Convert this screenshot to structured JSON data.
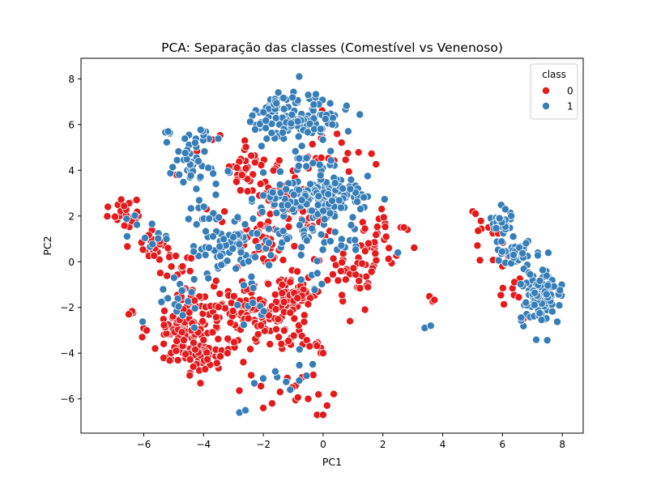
{
  "chart_data": {
    "type": "scatter",
    "title": "PCA: Separação das classes (Comestível vs Venenoso)",
    "xlabel": "PC1",
    "ylabel": "PC2",
    "xlim": [
      -8.1,
      8.7
    ],
    "ylim": [
      -7.5,
      8.9
    ],
    "xticks": [
      -6,
      -4,
      -2,
      0,
      2,
      4,
      6,
      8
    ],
    "yticks": [
      -6,
      -4,
      -2,
      0,
      2,
      4,
      6,
      8
    ],
    "grid": false,
    "legend": {
      "title": "class",
      "placement": "top-right"
    },
    "series": [
      {
        "name": "0",
        "color": "#e41a1c",
        "clusters": [
          {
            "cx": -6.6,
            "cy": 2.2,
            "sx": 0.35,
            "sy": 0.35,
            "n": 22
          },
          {
            "cx": -5.8,
            "cy": 0.8,
            "sx": 0.35,
            "sy": 0.4,
            "n": 20
          },
          {
            "cx": -5.0,
            "cy": 0.0,
            "sx": 0.3,
            "sy": 0.4,
            "n": 14
          },
          {
            "cx": -4.6,
            "cy": -3.2,
            "sx": 0.6,
            "sy": 0.8,
            "n": 90
          },
          {
            "cx": -4.0,
            "cy": -4.2,
            "sx": 0.4,
            "sy": 0.3,
            "n": 30
          },
          {
            "cx": -4.3,
            "cy": -1.6,
            "sx": 0.5,
            "sy": 0.4,
            "n": 25
          },
          {
            "cx": -3.5,
            "cy": -3.0,
            "sx": 0.6,
            "sy": 0.8,
            "n": 30
          },
          {
            "cx": -2.6,
            "cy": -2.0,
            "sx": 0.4,
            "sy": 0.6,
            "n": 40
          },
          {
            "cx": -1.9,
            "cy": -2.5,
            "sx": 0.5,
            "sy": 0.5,
            "n": 30
          },
          {
            "cx": -1.1,
            "cy": -1.5,
            "sx": 0.5,
            "sy": 0.6,
            "n": 80
          },
          {
            "cx": -0.7,
            "cy": -3.2,
            "sx": 0.5,
            "sy": 0.5,
            "n": 20
          },
          {
            "cx": -2.1,
            "cy": 0.8,
            "sx": 0.5,
            "sy": 0.6,
            "n": 35
          },
          {
            "cx": -2.6,
            "cy": 4.2,
            "sx": 0.6,
            "sy": 0.6,
            "n": 35
          },
          {
            "cx": -1.3,
            "cy": 3.2,
            "sx": 0.6,
            "sy": 0.8,
            "n": 30
          },
          {
            "cx": 0.3,
            "cy": 4.8,
            "sx": 0.5,
            "sy": 0.6,
            "n": 20
          },
          {
            "cx": -0.4,
            "cy": 1.5,
            "sx": 0.5,
            "sy": 0.5,
            "n": 20
          },
          {
            "cx": 0.8,
            "cy": -0.7,
            "sx": 0.6,
            "sy": 0.5,
            "n": 25
          },
          {
            "cx": 1.6,
            "cy": 0.2,
            "sx": 0.5,
            "sy": 0.4,
            "n": 25
          },
          {
            "cx": 1.9,
            "cy": 1.6,
            "sx": 0.5,
            "sy": 0.4,
            "n": 15
          },
          {
            "cx": -2.2,
            "cy": -4.8,
            "sx": 0.6,
            "sy": 0.8,
            "n": 12
          },
          {
            "cx": -0.5,
            "cy": -5.5,
            "sx": 0.4,
            "sy": 0.4,
            "n": 8
          },
          {
            "cx": 5.5,
            "cy": 1.0,
            "sx": 0.4,
            "sy": 0.5,
            "n": 12
          },
          {
            "cx": 6.3,
            "cy": -1.5,
            "sx": 0.2,
            "sy": 0.3,
            "n": 8
          },
          {
            "cx": 3.7,
            "cy": -1.7,
            "sx": 0.1,
            "sy": 0.1,
            "n": 4
          },
          {
            "cx": -6.4,
            "cy": -2.3,
            "sx": 0.1,
            "sy": 0.1,
            "n": 2
          }
        ],
        "points": [
          [
            -7.2,
            2.4
          ],
          [
            -6.5,
            -2.3
          ],
          [
            -4.9,
            3.8
          ],
          [
            -3.9,
            2.3
          ],
          [
            -2.9,
            3.5
          ],
          [
            -3.2,
            -4.0
          ],
          [
            -2.0,
            -6.4
          ],
          [
            -0.2,
            -6.7
          ],
          [
            0.0,
            -6.7
          ],
          [
            -0.5,
            -6.0
          ],
          [
            0.0,
            -4.0
          ],
          [
            0.9,
            -2.6
          ],
          [
            2.6,
            1.5
          ],
          [
            2.7,
            1.5
          ],
          [
            5.0,
            2.2
          ],
          [
            5.1,
            2.1
          ],
          [
            6.0,
            -0.2
          ],
          [
            6.7,
            -2.5
          ],
          [
            6.9,
            -2.4
          ],
          [
            -3.3,
            2.2
          ],
          [
            -4.3,
            -1.7
          ],
          [
            -1.4,
            -3.6
          ],
          [
            1.4,
            -2.1
          ],
          [
            2.2,
            0.6
          ],
          [
            -0.3,
            0.1
          ]
        ]
      },
      {
        "name": "1",
        "color": "#377eb8",
        "clusters": [
          {
            "cx": -0.9,
            "cy": 6.3,
            "sx": 0.75,
            "sy": 0.5,
            "n": 140
          },
          {
            "cx": 0.1,
            "cy": 2.8,
            "sx": 0.75,
            "sy": 0.5,
            "n": 160
          },
          {
            "cx": -0.5,
            "cy": 4.4,
            "sx": 0.5,
            "sy": 0.4,
            "n": 15
          },
          {
            "cx": -4.3,
            "cy": 4.3,
            "sx": 0.4,
            "sy": 0.6,
            "n": 45
          },
          {
            "cx": -5.0,
            "cy": 5.5,
            "sx": 0.35,
            "sy": 0.3,
            "n": 10
          },
          {
            "cx": -4.0,
            "cy": 2.0,
            "sx": 0.35,
            "sy": 0.3,
            "n": 12
          },
          {
            "cx": -3.0,
            "cy": 0.6,
            "sx": 0.6,
            "sy": 0.6,
            "n": 75
          },
          {
            "cx": -1.5,
            "cy": 2.5,
            "sx": 0.5,
            "sy": 0.5,
            "n": 20
          },
          {
            "cx": -1.0,
            "cy": 1.2,
            "sx": 0.5,
            "sy": 0.4,
            "n": 20
          },
          {
            "cx": -5.8,
            "cy": 1.2,
            "sx": 0.35,
            "sy": 0.4,
            "n": 12
          },
          {
            "cx": -4.8,
            "cy": -1.6,
            "sx": 0.5,
            "sy": 0.6,
            "n": 18
          },
          {
            "cx": -2.4,
            "cy": -1.8,
            "sx": 0.3,
            "sy": 0.4,
            "n": 8
          },
          {
            "cx": -1.3,
            "cy": -4.8,
            "sx": 0.5,
            "sy": 0.4,
            "n": 8
          },
          {
            "cx": -0.4,
            "cy": -0.6,
            "sx": 0.3,
            "sy": 0.4,
            "n": 8
          },
          {
            "cx": 1.0,
            "cy": 1.0,
            "sx": 0.5,
            "sy": 0.3,
            "n": 12
          },
          {
            "cx": 6.0,
            "cy": 1.7,
            "sx": 0.2,
            "sy": 0.3,
            "n": 30
          },
          {
            "cx": 6.4,
            "cy": 0.4,
            "sx": 0.3,
            "sy": 0.3,
            "n": 40
          },
          {
            "cx": 7.3,
            "cy": -1.6,
            "sx": 0.35,
            "sy": 0.6,
            "n": 110
          }
        ],
        "points": [
          [
            -2.8,
            -6.6
          ],
          [
            -2.6,
            -6.5
          ],
          [
            3.4,
            -2.9
          ],
          [
            3.6,
            -2.8
          ],
          [
            5.9,
            1.9
          ],
          [
            2.5,
            0.4
          ],
          [
            -1.1,
            -5.6
          ],
          [
            -0.8,
            -5.2
          ],
          [
            -1.6,
            -4.8
          ],
          [
            -2.0,
            2.9
          ],
          [
            -2.0,
            3.9
          ],
          [
            0.4,
            1.3
          ],
          [
            -1.5,
            7.4
          ],
          [
            -0.8,
            8.1
          ],
          [
            -0.5,
            7.3
          ]
        ]
      }
    ]
  }
}
